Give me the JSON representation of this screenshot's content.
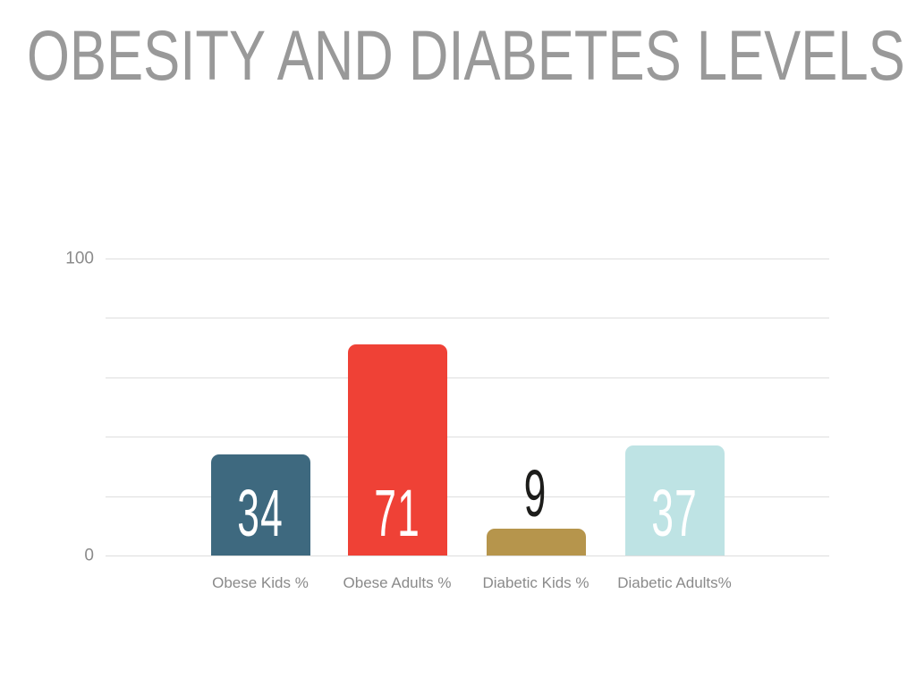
{
  "slide": {
    "title": "OBESITY AND DIABETES LEVELS"
  },
  "chart_data": {
    "type": "bar",
    "title": "OBESITY AND DIABETES LEVELS",
    "categories": [
      "Obese Kids %",
      "Obese Adults %",
      "Diabetic Kids %",
      "Diabetic Adults%"
    ],
    "values": [
      34,
      71,
      9,
      37
    ],
    "value_labels": [
      "34",
      "71",
      "9",
      "37"
    ],
    "bar_colors": [
      "#3E697F",
      "#EF4136",
      "#B6954C",
      "#BEE3E4"
    ],
    "value_label_colors": [
      "#FFFFFF",
      "#FFFFFF",
      "#1D1D1B",
      "#FFFFFF"
    ],
    "xlabel": "",
    "ylabel": "",
    "ylim": [
      0,
      100
    ],
    "ytick_labels_shown": [
      {
        "value": 100,
        "label": "100"
      },
      {
        "value": 0,
        "label": "0"
      }
    ],
    "gridline_values": [
      0,
      20,
      40,
      60,
      80,
      100
    ],
    "grid": "horizontal-only",
    "legend": "none"
  },
  "colors": {
    "background": "#FFFFFF",
    "title_text": "#999999",
    "axis_text": "#8A8A8A",
    "value_text_dark": "#1D1D1B",
    "value_text_light": "#FFFFFF",
    "gridline": "#DEDEDE"
  }
}
